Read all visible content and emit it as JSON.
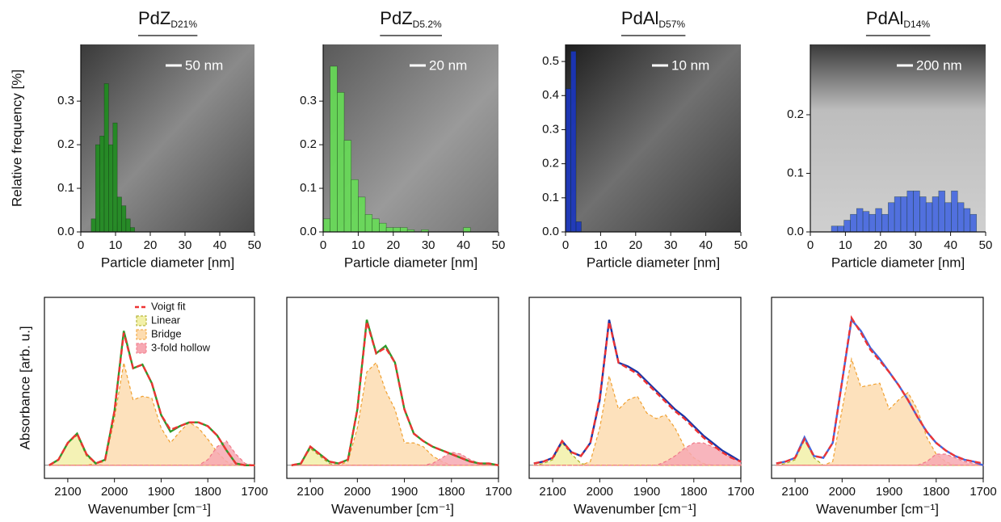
{
  "chart_data": [
    {
      "type": "histogram",
      "title": "PdZ",
      "title_subscript": "D21%",
      "scale_bar": "50 nm",
      "ylabel": "Relative frequency [%]",
      "xlabel": "Particle diameter [nm]",
      "color": "#1e8c1e",
      "bins": [
        3,
        4.25,
        5.5,
        6.75,
        8,
        9.25,
        10.5,
        11.75,
        13,
        14.25,
        15.5
      ],
      "values": [
        0.03,
        0.2,
        0.22,
        0.34,
        0.2,
        0.25,
        0.08,
        0.06,
        0.03,
        0.01
      ],
      "xlim": [
        0,
        50
      ],
      "xticks": [
        0,
        10,
        20,
        30,
        40,
        50
      ],
      "ylim": [
        0,
        0.43
      ],
      "yticks": [
        {
          "value": 0,
          "label": "0.0"
        },
        0.1,
        0.2,
        0.3
      ]
    },
    {
      "type": "histogram",
      "title": "PdZ",
      "title_subscript": "D5.2%",
      "scale_bar": "20 nm",
      "xlabel": "Particle diameter [nm]",
      "color": "#66dd55",
      "bins": [
        0,
        2,
        4,
        6,
        8,
        10,
        12,
        14,
        16,
        18,
        20,
        22,
        24,
        26,
        28,
        30,
        32,
        34,
        36,
        38,
        40,
        42
      ],
      "values": [
        0.03,
        0.38,
        0.32,
        0.21,
        0.12,
        0.08,
        0.04,
        0.03,
        0.02,
        0.01,
        0.01,
        0.01,
        0.005,
        0,
        0.005,
        0,
        0,
        0,
        0,
        0,
        0.01
      ],
      "xlim": [
        0,
        50
      ],
      "xticks": [
        0,
        10,
        20,
        30,
        40,
        50
      ],
      "ylim": [
        0,
        0.43
      ],
      "yticks": [
        {
          "value": 0,
          "label": "0.0"
        },
        0.1,
        0.2,
        0.3
      ]
    },
    {
      "type": "histogram",
      "title": "PdAl",
      "title_subscript": "D57%",
      "scale_bar": "10 nm",
      "xlabel": "Particle diameter [nm]",
      "color": "#1a35c0",
      "bins": [
        0,
        1.5,
        3,
        4.5
      ],
      "values": [
        0.42,
        0.53,
        0.03
      ],
      "xlim": [
        0,
        50
      ],
      "xticks": [
        0,
        10,
        20,
        30,
        40,
        50
      ],
      "ylim": [
        0,
        0.55
      ],
      "yticks": [
        {
          "value": 0,
          "label": "0.0"
        },
        0.1,
        0.2,
        0.3,
        0.4,
        0.5
      ]
    },
    {
      "type": "histogram",
      "title": "PdAl",
      "title_subscript": "D14%",
      "scale_bar": "200 nm",
      "xlabel": "Particle diameter [nm]",
      "color": "#4466e0",
      "bins": [
        6,
        7.8,
        9.6,
        11.4,
        13.2,
        15,
        16.8,
        18.6,
        20.4,
        22.2,
        24,
        25.8,
        27.6,
        29.4,
        31.2,
        33,
        34.8,
        36.6,
        38.4,
        40.2,
        42,
        43.8,
        45.6,
        47.4
      ],
      "values": [
        0.01,
        0.01,
        0.02,
        0.03,
        0.04,
        0.035,
        0.03,
        0.04,
        0.03,
        0.05,
        0.06,
        0.06,
        0.07,
        0.07,
        0.06,
        0.05,
        0.06,
        0.07,
        0.05,
        0.07,
        0.05,
        0.04,
        0.03
      ],
      "xlim": [
        0,
        50
      ],
      "xticks": [
        0,
        10,
        20,
        30,
        40,
        50
      ],
      "ylim": [
        0,
        0.32
      ],
      "yticks": [
        {
          "value": 0,
          "label": "0.0"
        },
        0.1,
        0.2
      ]
    },
    {
      "type": "line",
      "ylabel": "Absorbance [arb. u.]",
      "xlabel": "Wavenumber [cm⁻¹]",
      "legend": true,
      "x": [
        2140,
        2120,
        2100,
        2080,
        2060,
        2040,
        2020,
        2000,
        1980,
        1960,
        1940,
        1920,
        1900,
        1880,
        1860,
        1840,
        1820,
        1800,
        1780,
        1760,
        1740,
        1720,
        1700
      ],
      "xlim": [
        2150,
        1700
      ],
      "xticks": [
        2100,
        2000,
        1900,
        1800,
        1700
      ],
      "ylim": [
        -0.07,
        0.9
      ],
      "series": [
        {
          "name": "Linear",
          "style": "area",
          "color": "#a8a820",
          "fill": "#f2f0a8",
          "values": [
            0,
            0.03,
            0.12,
            0.16,
            0.05,
            0.01,
            0,
            0,
            0,
            0,
            0,
            0,
            0,
            0,
            0,
            0,
            0,
            0,
            0,
            0,
            0,
            0,
            0
          ]
        },
        {
          "name": "Bridge",
          "style": "area",
          "color": "#f0a030",
          "fill": "#fddcb0",
          "values": [
            0,
            0,
            0,
            0,
            0,
            0.01,
            0.02,
            0.25,
            0.55,
            0.35,
            0.37,
            0.36,
            0.2,
            0.12,
            0.18,
            0.23,
            0.2,
            0.14,
            0.07,
            0.02,
            0,
            0,
            0
          ]
        },
        {
          "name": "3-fold hollow",
          "style": "area",
          "color": "#f07888",
          "fill": "#f7a8b2",
          "values": [
            0,
            0,
            0,
            0,
            0,
            0,
            0,
            0,
            0,
            0,
            0,
            0,
            0,
            0,
            0,
            0,
            0,
            0.03,
            0.1,
            0.13,
            0.06,
            0.01,
            0
          ]
        },
        {
          "style": "line",
          "color": "#2e9a2a",
          "values": [
            0,
            0.03,
            0.12,
            0.17,
            0.06,
            0.01,
            0.03,
            0.29,
            0.72,
            0.52,
            0.54,
            0.44,
            0.27,
            0.18,
            0.21,
            0.23,
            0.23,
            0.21,
            0.16,
            0.08,
            0.01,
            0,
            0
          ]
        },
        {
          "name": "Voigt fit",
          "style": "dashed",
          "color": "#ee3333",
          "values": [
            0,
            0.03,
            0.12,
            0.17,
            0.06,
            0.01,
            0.03,
            0.29,
            0.71,
            0.52,
            0.54,
            0.44,
            0.27,
            0.19,
            0.21,
            0.23,
            0.23,
            0.21,
            0.16,
            0.08,
            0.01,
            0,
            0
          ]
        }
      ]
    },
    {
      "type": "line",
      "xlabel": "Wavenumber [cm⁻¹]",
      "x": [
        2140,
        2120,
        2100,
        2080,
        2060,
        2040,
        2020,
        2000,
        1980,
        1960,
        1940,
        1920,
        1900,
        1880,
        1860,
        1840,
        1820,
        1800,
        1780,
        1760,
        1740,
        1720,
        1700
      ],
      "xlim": [
        2150,
        1700
      ],
      "xticks": [
        2100,
        2000,
        1900,
        1800,
        1700
      ],
      "ylim": [
        -0.07,
        0.9
      ],
      "series": [
        {
          "style": "area",
          "color": "#a8a820",
          "fill": "#f2f0a8",
          "values": [
            0,
            0.01,
            0.09,
            0.05,
            0.01,
            0,
            0,
            0,
            0,
            0,
            0,
            0,
            0,
            0,
            0,
            0,
            0,
            0,
            0,
            0,
            0,
            0,
            0
          ]
        },
        {
          "style": "area",
          "color": "#f0a030",
          "fill": "#fddcb0",
          "values": [
            0,
            0,
            0,
            0,
            0,
            0,
            0.02,
            0.2,
            0.5,
            0.55,
            0.4,
            0.3,
            0.12,
            0.12,
            0.1,
            0.05,
            0.02,
            0,
            0,
            0,
            0,
            0,
            0
          ]
        },
        {
          "style": "area",
          "color": "#f07888",
          "fill": "#f7a8b2",
          "values": [
            0,
            0,
            0,
            0,
            0,
            0,
            0,
            0,
            0,
            0,
            0,
            0,
            0,
            0,
            0,
            0.01,
            0.04,
            0.07,
            0.06,
            0.03,
            0.01,
            0,
            0
          ]
        },
        {
          "style": "line",
          "color": "#2e9a2a",
          "values": [
            0,
            0.01,
            0.1,
            0.06,
            0.02,
            0.01,
            0.03,
            0.3,
            0.78,
            0.6,
            0.64,
            0.55,
            0.3,
            0.17,
            0.13,
            0.1,
            0.08,
            0.06,
            0.04,
            0.02,
            0.01,
            0.01,
            0
          ]
        },
        {
          "style": "dashed",
          "color": "#ee3333",
          "values": [
            0,
            0.01,
            0.1,
            0.06,
            0.02,
            0.01,
            0.03,
            0.3,
            0.77,
            0.6,
            0.63,
            0.55,
            0.3,
            0.17,
            0.13,
            0.1,
            0.08,
            0.06,
            0.04,
            0.02,
            0.01,
            0.01,
            0
          ]
        }
      ]
    },
    {
      "type": "line",
      "xlabel": "Wavenumber [cm⁻¹]",
      "x": [
        2140,
        2120,
        2100,
        2080,
        2060,
        2040,
        2020,
        2000,
        1980,
        1960,
        1940,
        1920,
        1900,
        1880,
        1860,
        1840,
        1820,
        1800,
        1780,
        1760,
        1740,
        1720,
        1700
      ],
      "xlim": [
        2150,
        1700
      ],
      "xticks": [
        2100,
        2000,
        1900,
        1800,
        1700
      ],
      "ylim": [
        -0.07,
        0.9
      ],
      "series": [
        {
          "style": "area",
          "color": "#a8a820",
          "fill": "#f2f0a8",
          "values": [
            0,
            0.01,
            0.03,
            0.12,
            0.06,
            0.01,
            0,
            0,
            0,
            0,
            0,
            0,
            0,
            0,
            0,
            0,
            0,
            0,
            0,
            0,
            0,
            0,
            0
          ]
        },
        {
          "style": "area",
          "color": "#f0a030",
          "fill": "#fddcb0",
          "values": [
            0,
            0,
            0,
            0,
            0,
            0,
            0.02,
            0.2,
            0.48,
            0.3,
            0.35,
            0.37,
            0.28,
            0.25,
            0.27,
            0.2,
            0.1,
            0.04,
            0.01,
            0,
            0,
            0,
            0
          ]
        },
        {
          "style": "area",
          "color": "#f07888",
          "fill": "#f7a8b2",
          "values": [
            0,
            0,
            0,
            0,
            0,
            0,
            0,
            0,
            0,
            0,
            0,
            0,
            0,
            0,
            0.02,
            0.05,
            0.09,
            0.12,
            0.12,
            0.1,
            0.07,
            0.04,
            0.02
          ]
        },
        {
          "style": "line",
          "color": "#1a35a8",
          "values": [
            0.01,
            0.02,
            0.04,
            0.13,
            0.07,
            0.05,
            0.12,
            0.35,
            0.78,
            0.55,
            0.53,
            0.5,
            0.45,
            0.4,
            0.35,
            0.3,
            0.26,
            0.21,
            0.16,
            0.12,
            0.08,
            0.05,
            0.02
          ]
        },
        {
          "style": "dashed",
          "color": "#ee3333",
          "values": [
            0.01,
            0.02,
            0.04,
            0.13,
            0.07,
            0.05,
            0.12,
            0.36,
            0.77,
            0.55,
            0.52,
            0.49,
            0.44,
            0.39,
            0.34,
            0.29,
            0.25,
            0.2,
            0.15,
            0.11,
            0.07,
            0.04,
            0.02
          ]
        }
      ]
    },
    {
      "type": "line",
      "xlabel": "Wavenumber [cm⁻¹]",
      "x": [
        2140,
        2120,
        2100,
        2080,
        2060,
        2040,
        2020,
        2000,
        1980,
        1960,
        1940,
        1920,
        1900,
        1880,
        1860,
        1840,
        1820,
        1800,
        1780,
        1760,
        1740,
        1720,
        1700
      ],
      "xlim": [
        2150,
        1700
      ],
      "xticks": [
        2100,
        2000,
        1900,
        1800,
        1700
      ],
      "ylim": [
        -0.07,
        0.9
      ],
      "series": [
        {
          "style": "area",
          "color": "#a8a820",
          "fill": "#f2f0a8",
          "values": [
            0,
            0.01,
            0.03,
            0.14,
            0.04,
            0,
            0,
            0,
            0,
            0,
            0,
            0,
            0,
            0,
            0,
            0,
            0,
            0,
            0,
            0,
            0,
            0,
            0
          ]
        },
        {
          "style": "area",
          "color": "#f0a030",
          "fill": "#fddcb0",
          "values": [
            0,
            0,
            0,
            0,
            0,
            0,
            0.02,
            0.3,
            0.57,
            0.42,
            0.43,
            0.44,
            0.3,
            0.35,
            0.39,
            0.3,
            0.15,
            0.06,
            0.02,
            0,
            0,
            0,
            0
          ]
        },
        {
          "style": "area",
          "color": "#f07888",
          "fill": "#f7a8b2",
          "values": [
            0,
            0,
            0,
            0,
            0,
            0,
            0,
            0,
            0,
            0,
            0,
            0,
            0,
            0,
            0,
            0,
            0.02,
            0.06,
            0.06,
            0.04,
            0.02,
            0.01,
            0
          ]
        },
        {
          "style": "line",
          "color": "#4466dd",
          "values": [
            0.01,
            0.02,
            0.04,
            0.15,
            0.05,
            0.04,
            0.12,
            0.45,
            0.78,
            0.72,
            0.63,
            0.57,
            0.5,
            0.43,
            0.35,
            0.26,
            0.18,
            0.12,
            0.08,
            0.05,
            0.03,
            0.02,
            0
          ]
        },
        {
          "style": "dashed",
          "color": "#ee3333",
          "values": [
            0.01,
            0.02,
            0.04,
            0.14,
            0.05,
            0.04,
            0.12,
            0.45,
            0.79,
            0.71,
            0.62,
            0.56,
            0.5,
            0.43,
            0.35,
            0.26,
            0.18,
            0.12,
            0.08,
            0.05,
            0.03,
            0.02,
            0.01
          ]
        }
      ]
    }
  ]
}
